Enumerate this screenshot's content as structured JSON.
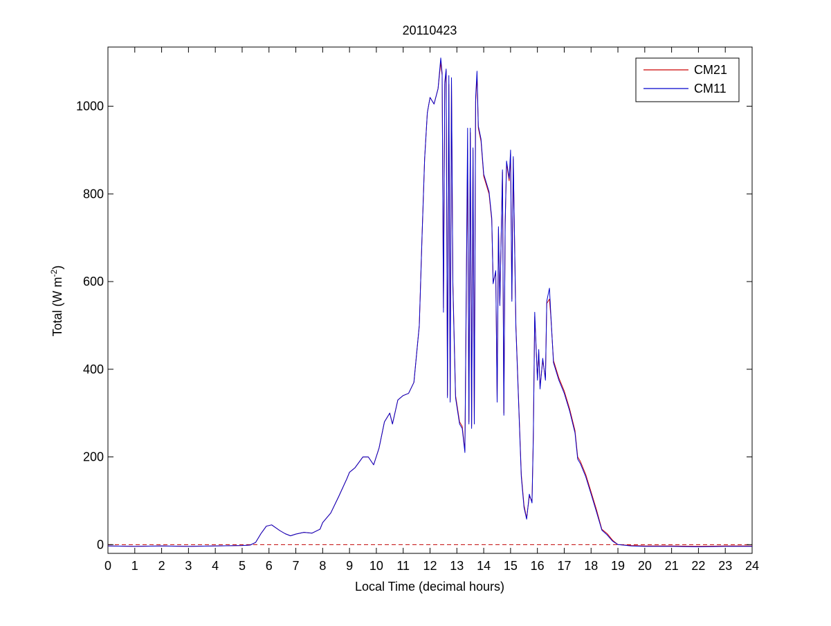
{
  "chart_data": {
    "type": "line",
    "title": "20110423",
    "xlabel": "Local Time (decimal hours)",
    "ylabel": {
      "prefix": "Total (W m",
      "superscript": "-2",
      "suffix": ")"
    },
    "xlim": [
      0,
      24
    ],
    "ylim": [
      -20,
      1135
    ],
    "xticks": [
      "0",
      "1",
      "2",
      "3",
      "4",
      "5",
      "6",
      "7",
      "8",
      "9",
      "10",
      "11",
      "12",
      "13",
      "14",
      "15",
      "16",
      "17",
      "18",
      "19",
      "20",
      "21",
      "22",
      "23",
      "24"
    ],
    "yticks": [
      "0",
      "200",
      "400",
      "600",
      "800",
      "1000"
    ],
    "grid": false,
    "legend_position": "top-right",
    "reference_line": {
      "y": 0,
      "style": "dashed",
      "color": "#c00000"
    },
    "colors": {
      "CM21": "#cc0000",
      "CM11": "#0000cc"
    },
    "series": [
      {
        "name": "CM21",
        "color": "#cc0000",
        "x": [
          0,
          1,
          2,
          3,
          4,
          5,
          5.3,
          5.5,
          5.7,
          5.9,
          6.1,
          6.4,
          6.6,
          6.8,
          7.0,
          7.3,
          7.6,
          7.9,
          8.0,
          8.3,
          8.6,
          8.9,
          9.0,
          9.2,
          9.5,
          9.7,
          9.9,
          10.1,
          10.3,
          10.5,
          10.6,
          10.8,
          11.0,
          11.2,
          11.4,
          11.6,
          11.7,
          11.8,
          11.9,
          12.0,
          12.15,
          12.3,
          12.4,
          12.45,
          12.5,
          12.55,
          12.6,
          12.65,
          12.7,
          12.75,
          12.8,
          12.85,
          12.95,
          13.1,
          13.2,
          13.3,
          13.4,
          13.45,
          13.5,
          13.55,
          13.6,
          13.65,
          13.7,
          13.75,
          13.8,
          13.9,
          14.0,
          14.2,
          14.3,
          14.35,
          14.45,
          14.5,
          14.55,
          14.6,
          14.7,
          14.75,
          14.8,
          14.85,
          14.95,
          15.0,
          15.05,
          15.1,
          15.2,
          15.4,
          15.5,
          15.6,
          15.7,
          15.8,
          15.85,
          15.9,
          16.0,
          16.05,
          16.1,
          16.2,
          16.3,
          16.35,
          16.45,
          16.5,
          16.6,
          16.8,
          17.0,
          17.2,
          17.4,
          17.5,
          17.6,
          17.8,
          18.0,
          18.2,
          18.4,
          18.6,
          18.8,
          19.0,
          19.5,
          20,
          21,
          22,
          23,
          24
        ],
        "y": [
          -3,
          -4,
          -3,
          -4,
          -3,
          -2,
          -1,
          5,
          25,
          42,
          45,
          32,
          25,
          20,
          24,
          28,
          26,
          35,
          50,
          72,
          110,
          150,
          165,
          175,
          200,
          200,
          182,
          220,
          280,
          300,
          275,
          330,
          340,
          345,
          370,
          500,
          700,
          880,
          985,
          1020,
          1005,
          1040,
          1100,
          1070,
          540,
          1050,
          1080,
          340,
          1050,
          330,
          1060,
          600,
          340,
          280,
          270,
          215,
          900,
          280,
          940,
          270,
          900,
          280,
          1010,
          1070,
          950,
          920,
          840,
          800,
          740,
          600,
          620,
          330,
          720,
          550,
          850,
          300,
          730,
          870,
          830,
          890,
          560,
          880,
          500,
          160,
          90,
          60,
          110,
          100,
          250,
          520,
          380,
          440,
          360,
          420,
          380,
          550,
          560,
          520,
          420,
          380,
          350,
          310,
          260,
          200,
          190,
          160,
          120,
          80,
          35,
          25,
          10,
          0,
          -2,
          -3,
          -3,
          -4,
          -3,
          -3
        ]
      },
      {
        "name": "CM11",
        "color": "#0000cc",
        "x": [
          0,
          1,
          2,
          3,
          4,
          5,
          5.3,
          5.5,
          5.7,
          5.9,
          6.1,
          6.4,
          6.6,
          6.8,
          7.0,
          7.3,
          7.6,
          7.9,
          8.0,
          8.3,
          8.6,
          8.9,
          9.0,
          9.2,
          9.5,
          9.7,
          9.9,
          10.1,
          10.3,
          10.5,
          10.6,
          10.8,
          11.0,
          11.2,
          11.4,
          11.6,
          11.7,
          11.8,
          11.9,
          12.0,
          12.15,
          12.3,
          12.4,
          12.45,
          12.5,
          12.55,
          12.6,
          12.65,
          12.7,
          12.75,
          12.8,
          12.85,
          12.95,
          13.1,
          13.2,
          13.3,
          13.4,
          13.45,
          13.5,
          13.55,
          13.6,
          13.65,
          13.7,
          13.75,
          13.8,
          13.9,
          14.0,
          14.2,
          14.3,
          14.35,
          14.45,
          14.5,
          14.55,
          14.6,
          14.7,
          14.75,
          14.8,
          14.85,
          14.95,
          15.0,
          15.05,
          15.1,
          15.2,
          15.4,
          15.5,
          15.6,
          15.7,
          15.8,
          15.85,
          15.9,
          16.0,
          16.05,
          16.1,
          16.2,
          16.3,
          16.35,
          16.45,
          16.5,
          16.6,
          16.8,
          17.0,
          17.2,
          17.4,
          17.5,
          17.6,
          17.8,
          18.0,
          18.2,
          18.4,
          18.6,
          18.8,
          19.0,
          19.5,
          20,
          21,
          22,
          23,
          24
        ],
        "y": [
          -3,
          -4,
          -3,
          -4,
          -3,
          -2,
          -1,
          5,
          25,
          42,
          45,
          32,
          25,
          20,
          24,
          28,
          26,
          35,
          50,
          72,
          110,
          150,
          165,
          175,
          200,
          200,
          182,
          220,
          280,
          300,
          275,
          330,
          340,
          345,
          370,
          500,
          700,
          880,
          985,
          1020,
          1005,
          1040,
          1110,
          1075,
          530,
          1055,
          1085,
          335,
          1070,
          325,
          1065,
          590,
          335,
          275,
          265,
          210,
          950,
          275,
          950,
          265,
          905,
          275,
          1020,
          1080,
          955,
          925,
          845,
          805,
          745,
          595,
          625,
          325,
          725,
          545,
          855,
          295,
          735,
          875,
          835,
          900,
          555,
          885,
          495,
          155,
          85,
          58,
          115,
          95,
          245,
          530,
          375,
          445,
          355,
          425,
          375,
          555,
          585,
          525,
          415,
          375,
          345,
          305,
          255,
          195,
          185,
          155,
          115,
          75,
          33,
          22,
          8,
          0,
          -3,
          -4,
          -4,
          -5,
          -4,
          -4
        ]
      }
    ]
  }
}
